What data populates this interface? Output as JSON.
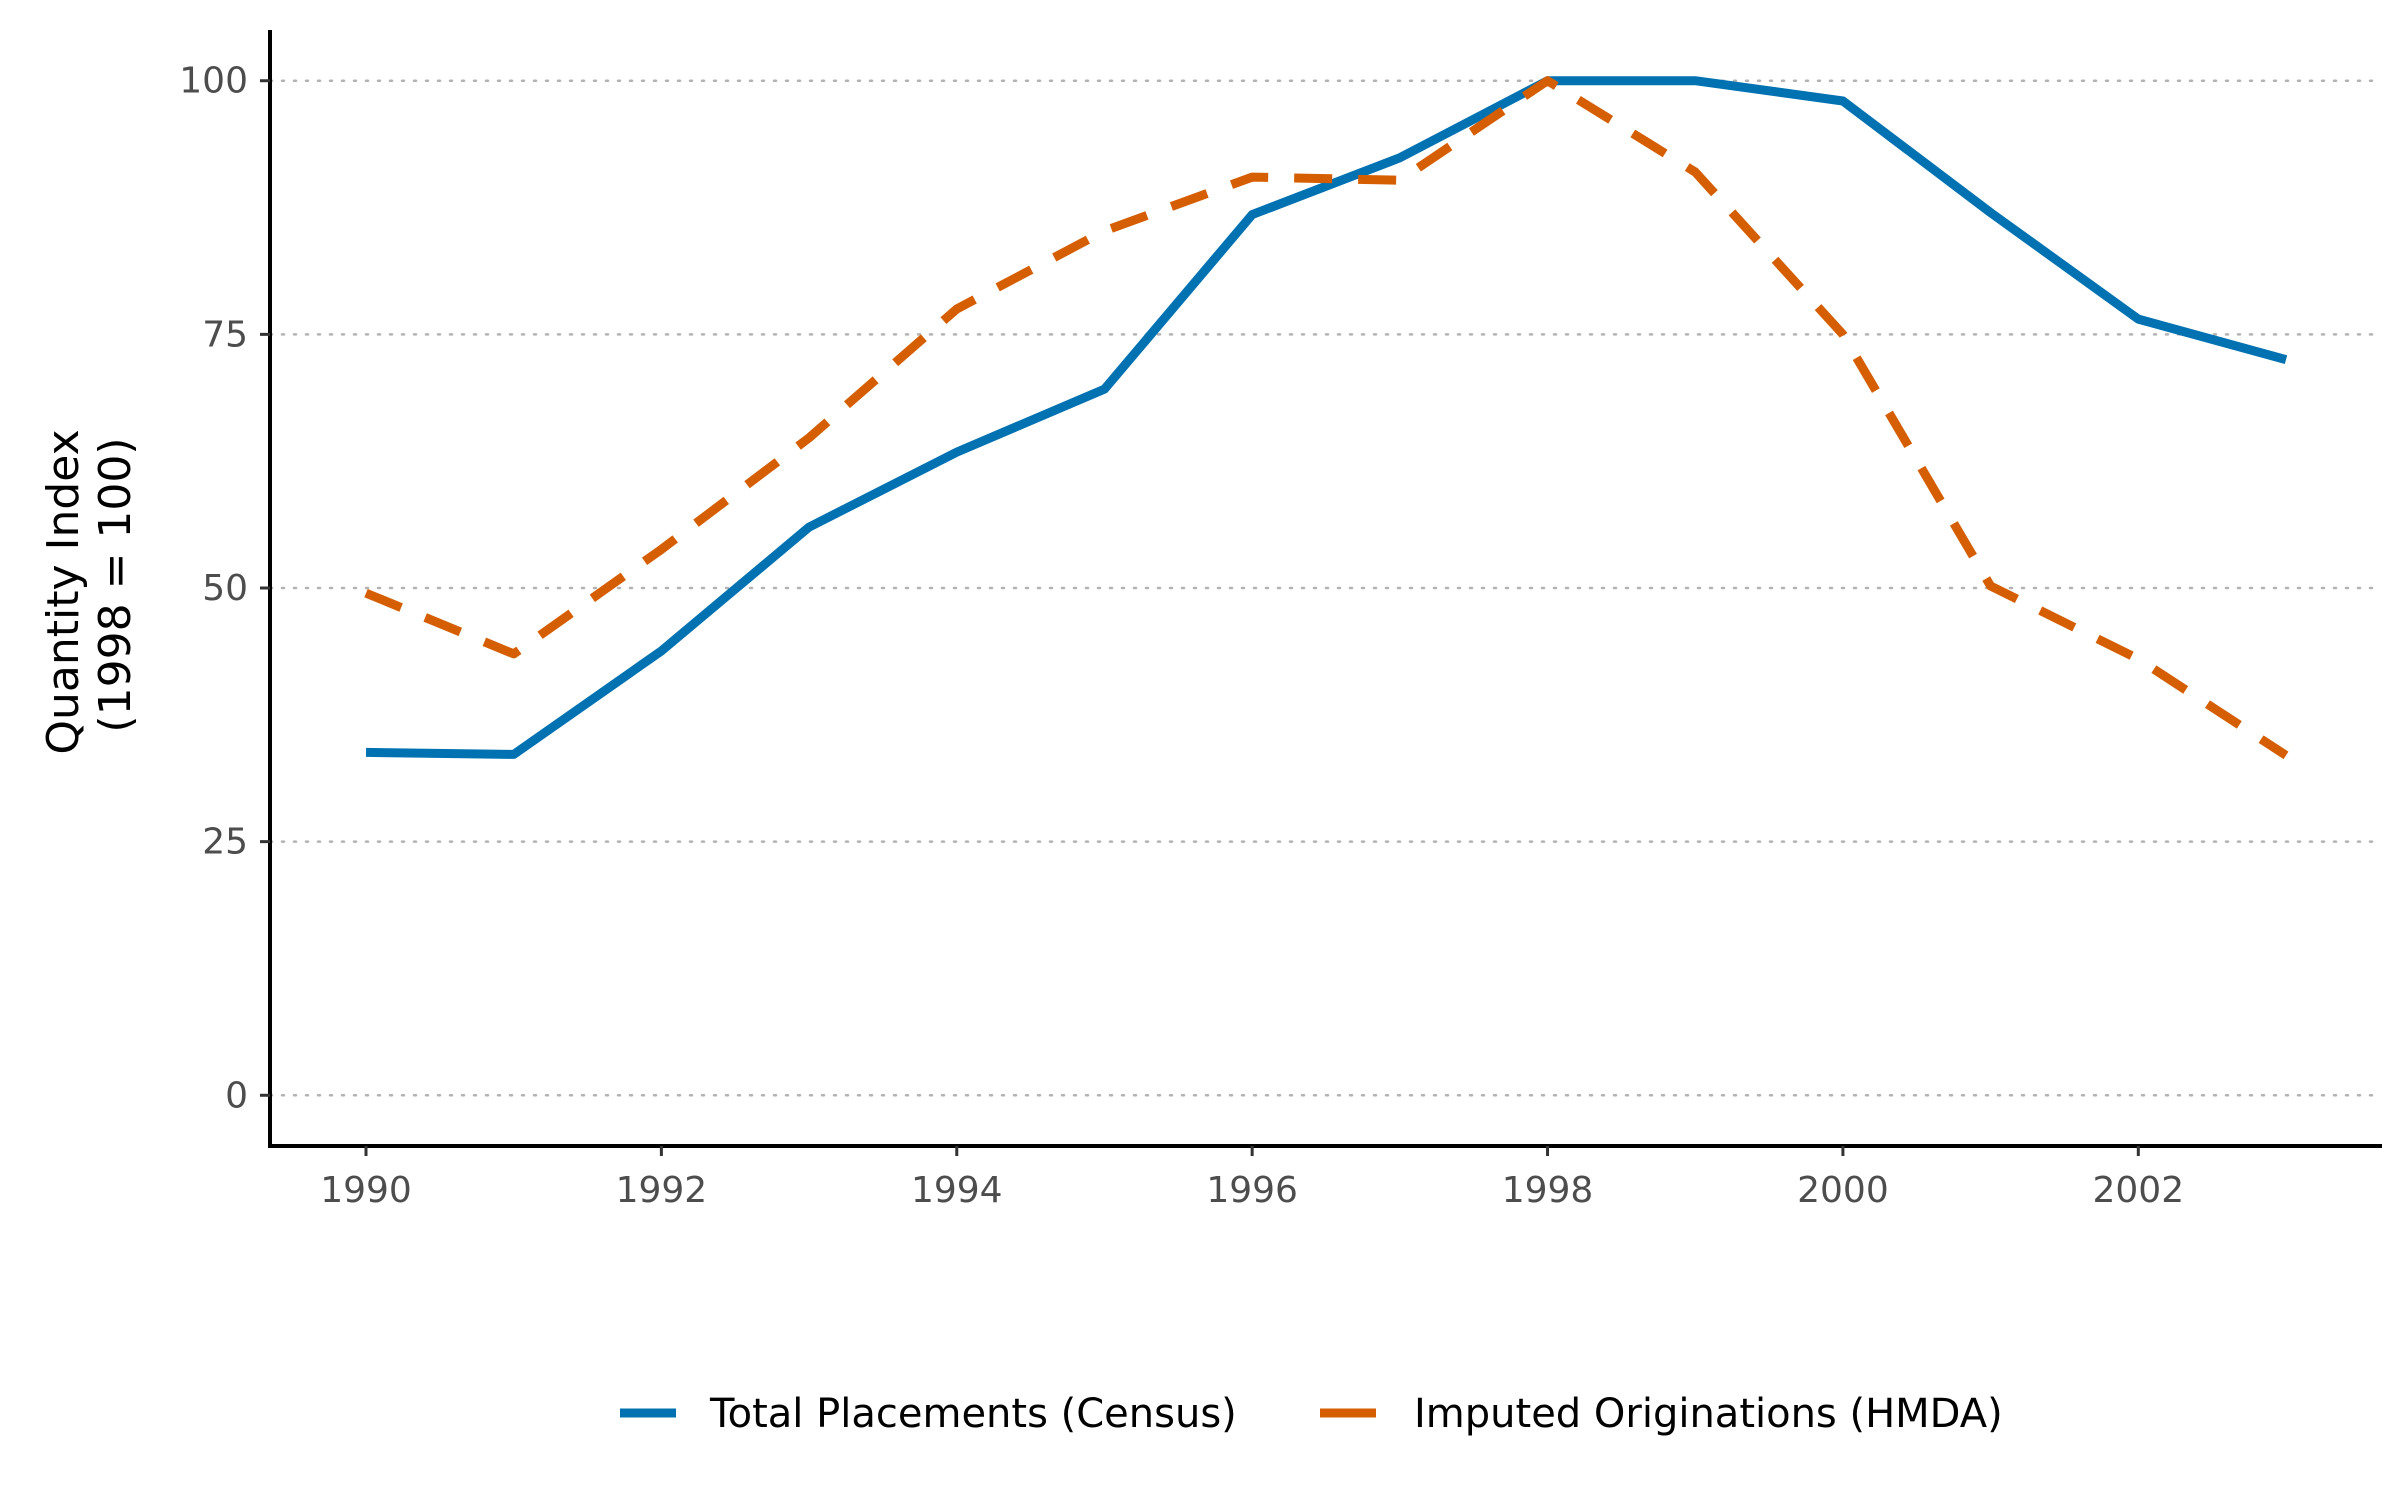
{
  "chart_data": {
    "type": "line",
    "title": "",
    "xlabel": "",
    "ylabel_lines": [
      "Quantity Index",
      "(1998 = 100)"
    ],
    "xlim": [
      1989.35,
      2003.65
    ],
    "ylim": [
      -5,
      105
    ],
    "x_ticks": [
      1990,
      1992,
      1994,
      1996,
      1998,
      2000,
      2002
    ],
    "y_ticks": [
      0,
      25,
      50,
      75,
      100
    ],
    "grid": "horizontal dotted at y ticks",
    "legend_position": "bottom",
    "x": [
      1990,
      1991,
      1992,
      1993,
      1994,
      1995,
      1996,
      1997,
      1998,
      1999,
      2000,
      2001,
      2002,
      2003
    ],
    "series": [
      {
        "name": "Total Placements (Census)",
        "color": "#0072B2",
        "style": "solid",
        "values": [
          33.8,
          33.6,
          43.8,
          56.0,
          63.4,
          69.6,
          86.8,
          92.4,
          100.0,
          100.0,
          98.0,
          87.0,
          76.5,
          72.5
        ]
      },
      {
        "name": "Imputed Originations (HMDA)",
        "color": "#D55E00",
        "style": "dashed",
        "values": [
          49.5,
          43.5,
          53.8,
          64.8,
          77.5,
          85.2,
          90.5,
          90.2,
          100.0,
          91.0,
          75.0,
          50.2,
          43.0,
          33.5
        ]
      }
    ]
  }
}
